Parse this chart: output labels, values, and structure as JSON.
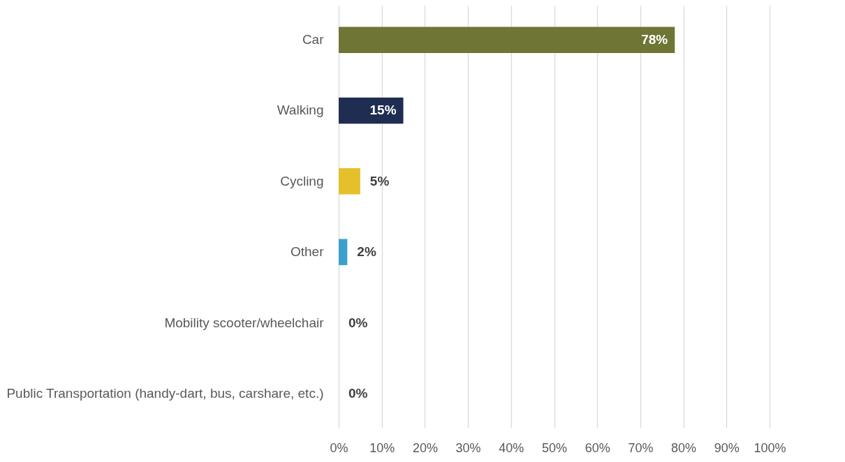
{
  "chart_data": {
    "type": "bar",
    "orientation": "horizontal",
    "categories": [
      "Car",
      "Walking",
      "Cycling",
      "Other",
      "Mobility scooter/wheelchair",
      "Public Transportation (handy-dart, bus, carshare, etc.)"
    ],
    "values": [
      78,
      15,
      5,
      2,
      0,
      0
    ],
    "colors": [
      "#6e7535",
      "#1f2d52",
      "#e5c02b",
      "#3aa0cc",
      "#7f7f7f",
      "#7f7f7f"
    ],
    "value_labels": [
      "78%",
      "15%",
      "5%",
      "2%",
      "0%",
      "0%"
    ],
    "xlim": [
      0,
      100
    ],
    "xticks": [
      {
        "value": 0,
        "label": "0%"
      },
      {
        "value": 10,
        "label": "10%"
      },
      {
        "value": 20,
        "label": "20%"
      },
      {
        "value": 30,
        "label": "30%"
      },
      {
        "value": 40,
        "label": "40%"
      },
      {
        "value": 50,
        "label": "50%"
      },
      {
        "value": 60,
        "label": "60%"
      },
      {
        "value": 70,
        "label": "70%"
      },
      {
        "value": 80,
        "label": "80%"
      },
      {
        "value": 90,
        "label": "90%"
      },
      {
        "value": 100,
        "label": "100%"
      }
    ],
    "grid": "x"
  }
}
